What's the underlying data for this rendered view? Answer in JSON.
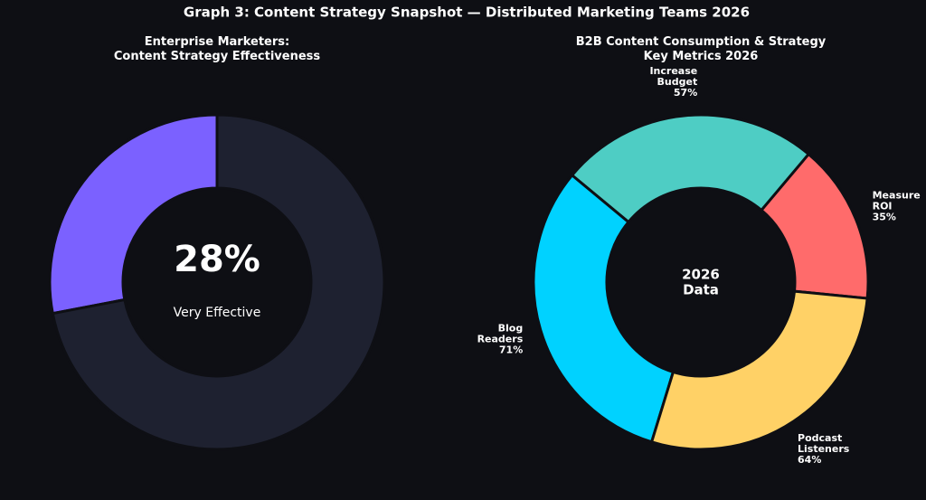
{
  "title": "Graph 3: Content Strategy Snapshot — Distributed Marketing Teams 2026",
  "chart_data": [
    {
      "type": "donut",
      "title": "Enterprise Marketers:\nContent Strategy Effectiveness",
      "categories": [
        "Very Effective",
        null
      ],
      "values": [
        28,
        72
      ],
      "value_labels": [
        "28%",
        null
      ],
      "colors": [
        "#7b61ff",
        "#1e2130"
      ]
    },
    {
      "type": "donut",
      "title": "B2B Content Consumption & Strategy\nKey Metrics 2026",
      "center_label": "2026\nData",
      "categories": [
        "Measure\nROI",
        "Increase\nBudget",
        "Blog\nReaders",
        "Podcast\nListeners"
      ],
      "values": [
        35,
        57,
        71,
        64
      ],
      "value_labels": [
        "35%",
        "57%",
        "71%",
        "64%"
      ],
      "colors": [
        "#ff6b6b",
        "#4ecdc4",
        "#00d2ff",
        "#ffd166"
      ]
    }
  ]
}
